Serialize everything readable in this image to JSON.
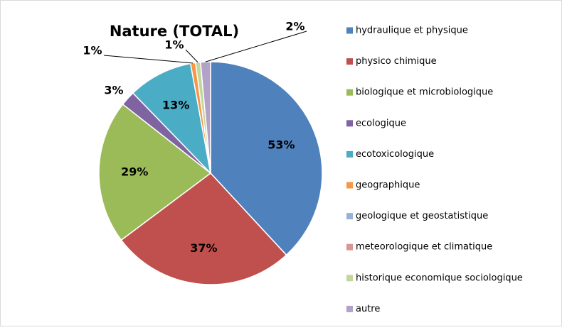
{
  "chart_data": {
    "type": "pie",
    "title": "Nature (TOTAL)",
    "categories": [
      "hydraulique et physique",
      "physico chimique",
      "biologique et microbiologique",
      "ecologique",
      "ecotoxicologique",
      "geographique",
      "geologique et geostatistique",
      "meteorologique et climatique",
      "historique economique  sociologique",
      "autre"
    ],
    "values": [
      53,
      37,
      29,
      3,
      13,
      1,
      0,
      0,
      1,
      2
    ],
    "value_labels": [
      "53%",
      "37%",
      "29%",
      "3%",
      "13%",
      "1%",
      null,
      null,
      "1%",
      "2%"
    ],
    "colors": [
      "#4f81bd",
      "#c0504d",
      "#9bbb59",
      "#8064a2",
      "#4bacc6",
      "#f79646",
      "#95b3d7",
      "#d99694",
      "#c3d69b",
      "#b2a2c7"
    ],
    "legend": "right"
  }
}
